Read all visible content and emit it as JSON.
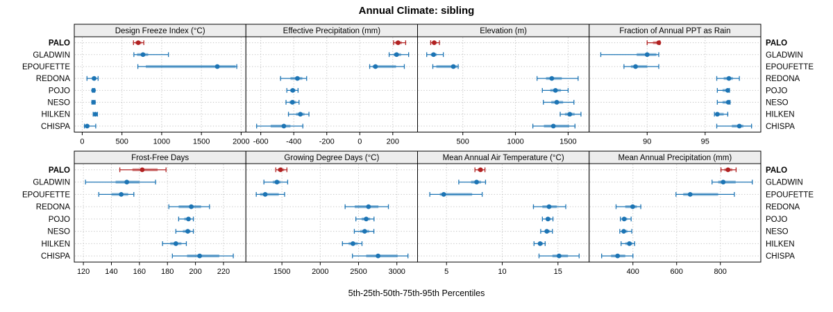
{
  "title": "Annual Climate: sibling",
  "caption": "5th-25th-50th-75th-95th Percentiles",
  "colors": {
    "highlight": "#B12121",
    "normal": "#1C74B4",
    "strip_bg": "#EDEDED",
    "grid": "#C4C4C4",
    "border": "#000000"
  },
  "chart_data": {
    "type": "dotplot",
    "layout": "trellis 2 rows x 4 cols",
    "percentiles": [
      "5th",
      "25th",
      "50th",
      "75th",
      "95th"
    ],
    "sites": [
      "PALO",
      "GLADWIN",
      "EPOUFETTE",
      "REDONA",
      "POJO",
      "NESO",
      "HILKEN",
      "CHISPA"
    ],
    "highlight_site": "PALO",
    "panels": [
      {
        "row": 0,
        "col": 0,
        "title": "Design Freeze Index (°C)",
        "xlim": [
          -100,
          2060
        ],
        "ticks": [
          0,
          500,
          1000,
          1500,
          2000
        ],
        "values": {
          "PALO": [
            645,
            670,
            705,
            745,
            775
          ],
          "GLADWIN": [
            650,
            690,
            765,
            830,
            1085
          ],
          "EPOUFETTE": [
            700,
            800,
            1700,
            1930,
            1945
          ],
          "REDONA": [
            60,
            120,
            150,
            165,
            200
          ],
          "POJO": [
            128,
            135,
            142,
            150,
            158
          ],
          "NESO": [
            122,
            132,
            142,
            152,
            162
          ],
          "HILKEN": [
            138,
            152,
            165,
            178,
            192
          ],
          "CHISPA": [
            28,
            45,
            62,
            92,
            170
          ]
        }
      },
      {
        "row": 0,
        "col": 1,
        "title": "Effective Precipitation (mm)",
        "xlim": [
          -690,
          350
        ],
        "ticks": [
          -600,
          -400,
          -200,
          0,
          200
        ],
        "values": {
          "PALO": [
            205,
            215,
            232,
            255,
            278
          ],
          "GLADWIN": [
            178,
            205,
            223,
            250,
            296
          ],
          "EPOUFETTE": [
            60,
            78,
            95,
            220,
            270
          ],
          "REDONA": [
            -480,
            -420,
            -378,
            -348,
            -322
          ],
          "POJO": [
            -442,
            -422,
            -406,
            -390,
            -374
          ],
          "NESO": [
            -447,
            -426,
            -408,
            -386,
            -368
          ],
          "HILKEN": [
            -432,
            -386,
            -360,
            -335,
            -308
          ],
          "CHISPA": [
            -625,
            -540,
            -460,
            -420,
            -345
          ]
        }
      },
      {
        "row": 0,
        "col": 2,
        "title": "Elevation (m)",
        "xlim": [
          70,
          1700
        ],
        "ticks": [
          500,
          1000,
          1500
        ],
        "values": {
          "PALO": [
            195,
            212,
            228,
            250,
            278
          ],
          "GLADWIN": [
            157,
            196,
            222,
            252,
            315
          ],
          "EPOUFETTE": [
            215,
            248,
            410,
            446,
            456
          ],
          "REDONA": [
            1205,
            1290,
            1345,
            1440,
            1595
          ],
          "POJO": [
            1255,
            1330,
            1380,
            1432,
            1500
          ],
          "NESO": [
            1265,
            1340,
            1392,
            1452,
            1555
          ],
          "HILKEN": [
            1425,
            1470,
            1516,
            1562,
            1622
          ],
          "CHISPA": [
            1165,
            1270,
            1360,
            1510,
            1565
          ]
        }
      },
      {
        "row": 0,
        "col": 3,
        "title": "Fraction of Annual PPT as Rain",
        "xlim": [
          85,
          99.8
        ],
        "ticks": [
          90,
          95
        ],
        "values": {
          "PALO": [
            90.0,
            90.5,
            91.0,
            91.05,
            91.1
          ],
          "GLADWIN": [
            86.0,
            89.1,
            90.0,
            90.8,
            91.0
          ],
          "EPOUFETTE": [
            88.0,
            88.6,
            89.0,
            90.0,
            91.0
          ],
          "REDONA": [
            96.0,
            96.6,
            97.05,
            97.4,
            97.95
          ],
          "POJO": [
            96.05,
            96.5,
            96.95,
            97.0,
            97.1
          ],
          "NESO": [
            96.05,
            96.5,
            97.0,
            97.05,
            97.15
          ],
          "HILKEN": [
            95.8,
            95.9,
            96.05,
            96.6,
            96.95
          ],
          "CHISPA": [
            96.0,
            97.3,
            97.95,
            98.3,
            99.0
          ]
        }
      },
      {
        "row": 1,
        "col": 0,
        "title": "Frost-Free Days",
        "xlim": [
          113.5,
          236
        ],
        "ticks": [
          120,
          140,
          160,
          180,
          200,
          220
        ],
        "values": {
          "PALO": [
            146,
            155,
            162,
            173,
            179
          ],
          "GLADWIN": [
            121.5,
            143,
            151,
            160,
            171.5
          ],
          "EPOUFETTE": [
            131,
            140,
            147,
            152,
            156
          ],
          "REDONA": [
            181,
            188,
            197,
            204,
            210
          ],
          "POJO": [
            188,
            192,
            195,
            196.5,
            198.5
          ],
          "NESO": [
            186,
            191,
            194.5,
            196.5,
            198.5
          ],
          "HILKEN": [
            176.5,
            182,
            186,
            190,
            193.5
          ],
          "CHISPA": [
            183.5,
            194,
            203,
            217,
            227
          ]
        }
      },
      {
        "row": 1,
        "col": 1,
        "title": "Growing Degree Days (°C)",
        "xlim": [
          1030,
          3270
        ],
        "ticks": [
          1500,
          2000,
          2500,
          3000
        ],
        "values": {
          "PALO": [
            1420,
            1445,
            1482,
            1530,
            1565
          ],
          "GLADWIN": [
            1265,
            1380,
            1435,
            1482,
            1575
          ],
          "EPOUFETTE": [
            1165,
            1215,
            1282,
            1460,
            1535
          ],
          "REDONA": [
            2325,
            2450,
            2630,
            2760,
            2890
          ],
          "POJO": [
            2465,
            2540,
            2600,
            2652,
            2702
          ],
          "NESO": [
            2445,
            2520,
            2580,
            2640,
            2700
          ],
          "HILKEN": [
            2290,
            2370,
            2427,
            2490,
            2545
          ],
          "CHISPA": [
            2420,
            2600,
            2755,
            3010,
            3145
          ]
        }
      },
      {
        "row": 1,
        "col": 2,
        "title": "Mean Annual Air Temperature (°C)",
        "xlim": [
          2.4,
          17.8
        ],
        "ticks": [
          5,
          10,
          15
        ],
        "values": {
          "PALO": [
            7.55,
            7.8,
            8.05,
            8.25,
            8.45
          ],
          "GLADWIN": [
            6.1,
            7.2,
            7.7,
            8.1,
            8.5
          ],
          "EPOUFETTE": [
            3.5,
            4.4,
            4.75,
            7.3,
            8.2
          ],
          "REDONA": [
            12.8,
            13.6,
            14.2,
            14.9,
            15.7
          ],
          "POJO": [
            13.6,
            13.9,
            14.1,
            14.35,
            14.55
          ],
          "NESO": [
            13.45,
            13.8,
            14.0,
            14.3,
            14.5
          ],
          "HILKEN": [
            12.85,
            13.2,
            13.4,
            13.65,
            13.85
          ],
          "CHISPA": [
            13.3,
            14.5,
            15.1,
            15.9,
            16.9
          ]
        }
      },
      {
        "row": 1,
        "col": 3,
        "title": "Mean Annual Precipitation (mm)",
        "xlim": [
          200,
          985
        ],
        "ticks": [
          400,
          600,
          800
        ],
        "values": {
          "PALO": [
            803,
            818,
            835,
            855,
            872
          ],
          "GLADWIN": [
            762,
            790,
            813,
            870,
            946
          ],
          "EPOUFETTE": [
            597,
            630,
            662,
            790,
            864
          ],
          "REDONA": [
            323,
            365,
            399,
            418,
            436
          ],
          "POJO": [
            343,
            352,
            360,
            374,
            392
          ],
          "NESO": [
            340,
            350,
            358,
            375,
            395
          ],
          "HILKEN": [
            346,
            365,
            384,
            398,
            408
          ],
          "CHISPA": [
            257,
            300,
            330,
            365,
            400
          ]
        }
      }
    ]
  }
}
